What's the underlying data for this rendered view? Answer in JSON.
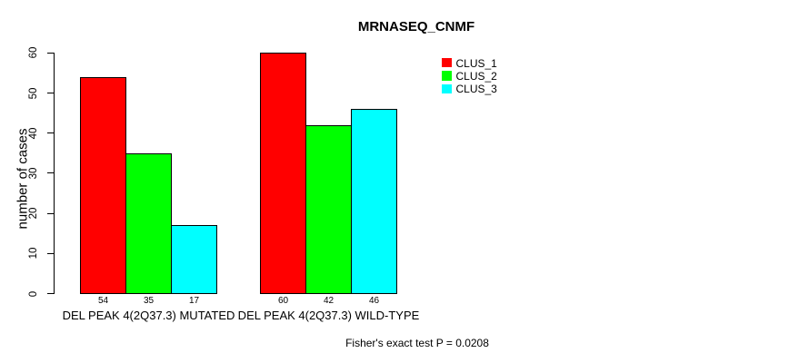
{
  "chart_data": {
    "type": "bar",
    "title": "MRNASEQ_CNMF",
    "ylabel": "number of cases",
    "xlabel": "",
    "ylim": [
      0,
      60
    ],
    "yticks": [
      0,
      10,
      20,
      30,
      40,
      50,
      60
    ],
    "grid": false,
    "legend_position": "top-right",
    "categories": [
      "DEL PEAK 4(2Q37.3) MUTATED",
      "DEL PEAK 4(2Q37.3) WILD-TYPE"
    ],
    "series": [
      {
        "name": "CLUS_1",
        "color": "#FF0000",
        "values": [
          54,
          60
        ]
      },
      {
        "name": "CLUS_2",
        "color": "#00FF00",
        "values": [
          35,
          42
        ]
      },
      {
        "name": "CLUS_3",
        "color": "#00FFFF",
        "values": [
          17,
          46
        ]
      }
    ],
    "bar_value_labels": [
      [
        54,
        35,
        17
      ],
      [
        60,
        42,
        46
      ]
    ],
    "footnote": "Fisher's exact test P = 0.0208"
  }
}
